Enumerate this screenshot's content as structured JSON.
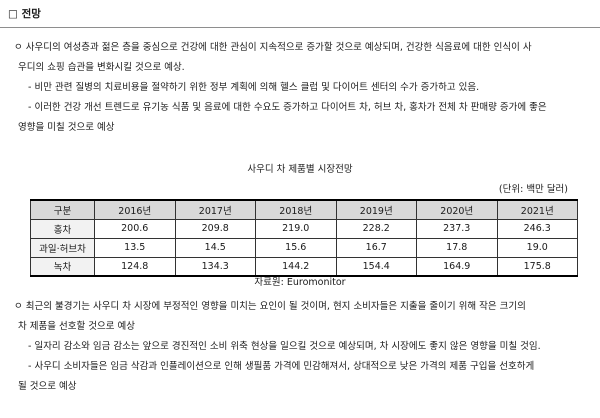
{
  "header": {
    "title": "□ 전망"
  },
  "outlook_section": {
    "bullet1": {
      "lines": [
        "ㅇ 사우디의 여성층과 젊은 층을 중심으로 건강에 대한 관심이 지속적으로 증가할 것으로 예상되며, 건강한 식음료에 대한 인식이 사",
        "우디의 쇼핑 습관을 변화시킬 것으로 예상."
      ]
    },
    "sub1": "- 비만 관련 질병의 치료비용을 절약하기 위한 정부 계획에 의해 헬스 클럽 및 다이어트 센터의 수가 증가하고 있음.",
    "sub2": {
      "lines": [
        "- 이러한 건강 개선 트렌드로 유기농 식품 및 음료에 대한 수요도 증가하고 다이어트 차, 허브 차, 홍차가 전체 차 판매량 증가에 좋은",
        "영향을 미칠 것으로 예상"
      ]
    }
  },
  "table": {
    "title": "사우디 차 제품별 시장전망",
    "unit": "(단위: 백만 달러)",
    "headers": [
      "구분",
      "2016년",
      "2017년",
      "2018년",
      "2019년",
      "2020년",
      "2021년"
    ],
    "rows": [
      {
        "label": "홍차",
        "values": [
          "200.6",
          "209.8",
          "219.0",
          "228.2",
          "237.3",
          "246.3"
        ]
      },
      {
        "label": "과일·허브차",
        "values": [
          "13.5",
          "14.5",
          "15.6",
          "16.7",
          "17.8",
          "19.0"
        ]
      },
      {
        "label": "녹차",
        "values": [
          "124.8",
          "134.3",
          "144.2",
          "154.4",
          "164.9",
          "175.8"
        ]
      }
    ],
    "source": "자료원: Euromonitor"
  },
  "recession_section": {
    "bullet1": {
      "lines": [
        "ㅇ 최근의 불경기는 사우디 차 시장에 부정적인 영향을 미치는 요인이 될 것이며, 현지 소비자들은 지출을 줄이기 위해 작은 크기의",
        "차 제품을 선호할 것으로 예상"
      ]
    },
    "sub1": "- 일자리 감소와 임금 감소는 앞으로 경진적인 소비 위축 현상을 일으킬 것으로 예상되며, 차 시장에도 좋지 않은 영향을 미칠 것임.",
    "sub2": {
      "lines": [
        "- 사우디 소비자들은 임금 삭감과 인플레이션으로 인해 생필품 가격에 민감해져서, 상대적으로 낮은 가격의 제품 구입을 선호하게",
        "될 것으로 예상"
      ]
    }
  }
}
